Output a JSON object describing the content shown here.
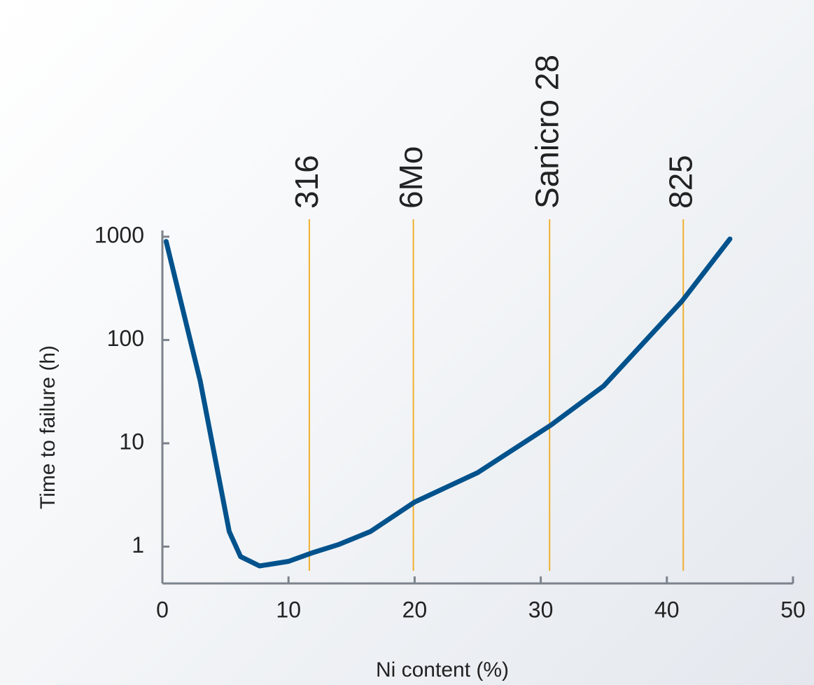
{
  "chart_data": {
    "type": "line",
    "xlabel": "Ni content (%)",
    "ylabel": "Time to failure (h)",
    "x": [
      0.3,
      3,
      5.3,
      6.2,
      7.7,
      10,
      12,
      14,
      16.5,
      20,
      25,
      30.8,
      35,
      41.2,
      45
    ],
    "values": [
      900,
      40,
      1.4,
      0.8,
      0.65,
      0.72,
      0.88,
      1.05,
      1.4,
      2.7,
      5.2,
      15,
      36,
      238,
      950
    ],
    "color": "#00528c",
    "xlim": [
      0,
      50
    ],
    "xticks": [
      0,
      10,
      20,
      30,
      40,
      50
    ],
    "ylim": [
      0.44,
      1150
    ],
    "yticks": [
      1,
      10,
      100,
      1000
    ],
    "ylog": true,
    "markers": [
      {
        "label": "316",
        "x": 11.65
      },
      {
        "label": "6Mo",
        "x": 19.9
      },
      {
        "label": "Sanicro 28",
        "x": 30.7
      },
      {
        "label": "825",
        "x": 41.3
      }
    ],
    "marker_color": "#f0b030"
  }
}
